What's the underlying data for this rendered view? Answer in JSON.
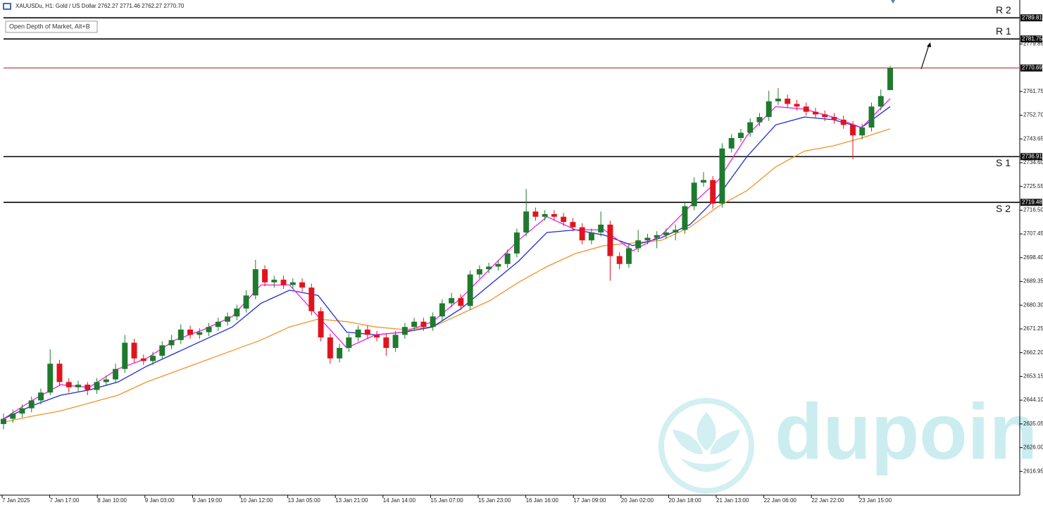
{
  "chart_data": {
    "type": "candlestick",
    "header": "XAUUSDu, H1:  Gold / US Dollar  2762.27 2771.46 2762.27 2770.70",
    "button": "Open Depth of Market, Alt+B",
    "watermark": "dupoin",
    "colors": {
      "up": "#1f7a2e",
      "down": "#e0141e"
    },
    "ylim": [
      2607.9,
      2796.6
    ],
    "yticks": [
      2616.95,
      {
        "value": 2626,
        "label": "2626.00"
      },
      2635.05,
      {
        "value": 2644.1,
        "label": "2644.10"
      },
      2653.15,
      {
        "value": 2662.2,
        "label": "2662.20"
      },
      2671.25,
      {
        "value": 2680.3,
        "label": "2680.30"
      },
      2689.35,
      {
        "value": 2698.4,
        "label": "2698.40"
      },
      2707.45,
      {
        "value": 2716.5,
        "label": "2716.50"
      },
      2725.55,
      {
        "value": 2734.6,
        "label": "2734.60"
      },
      2743.65,
      {
        "value": 2752.7,
        "label": "2752.70"
      },
      2761.75,
      2779.85
    ],
    "x_labels": [
      "7 Jan 2025",
      "7 Jan 17:00",
      "8 Jan 10:00",
      "9 Jan 03:00",
      "9 Jan 19:00",
      "10 Jan 12:00",
      "13 Jan 05:00",
      "13 Jan 21:00",
      "14 Jan 14:00",
      "15 Jan 07:00",
      "15 Jan 23:00",
      "16 Jan 16:00",
      "17 Jan 09:00",
      "20 Jan 02:00",
      "20 Jan 18:00",
      "21 Jan 13:00",
      "22 Jan 06:00",
      "22 Jan 22:00",
      "23 Jan 15:00"
    ],
    "levels": [
      {
        "name": "R 2",
        "value": 2789.81
      },
      {
        "name": "R 1",
        "value": 2781.75
      },
      {
        "name": "S 1",
        "value": 2736.91
      },
      {
        "name": "S 2",
        "value": 2719.48
      }
    ],
    "price_line": {
      "value": 2770.69,
      "color": "#b22222"
    },
    "candles": [
      [
        2635,
        2639,
        2633,
        2637
      ],
      [
        2637,
        2640.5,
        2635.5,
        2639
      ],
      [
        2639,
        2642.5,
        2637.5,
        2641
      ],
      [
        2641,
        2645.5,
        2639.5,
        2644
      ],
      [
        2644,
        2648.5,
        2642.5,
        2647
      ],
      [
        2647,
        2663.5,
        2646,
        2658
      ],
      [
        2658,
        2659.5,
        2649.5,
        2651
      ],
      [
        2651,
        2652.5,
        2647,
        2649
      ],
      [
        2649,
        2651.5,
        2647.5,
        2650
      ],
      [
        2650,
        2651,
        2646,
        2648
      ],
      [
        2648,
        2652.5,
        2646.5,
        2651
      ],
      [
        2651,
        2653.5,
        2649.5,
        2652
      ],
      [
        2652,
        2658,
        2650.5,
        2656
      ],
      [
        2656,
        2669,
        2654.5,
        2666
      ],
      [
        2666,
        2667.5,
        2658.5,
        2660
      ],
      [
        2660,
        2661.5,
        2657.5,
        2659
      ],
      [
        2659,
        2662.5,
        2657.5,
        2661
      ],
      [
        2661,
        2666.5,
        2659.5,
        2665
      ],
      [
        2665,
        2669,
        2663.5,
        2667
      ],
      [
        2667,
        2673,
        2665.5,
        2671
      ],
      [
        2671,
        2672.5,
        2667.5,
        2669
      ],
      [
        2669,
        2671.5,
        2667.5,
        2670
      ],
      [
        2670,
        2673.5,
        2668.5,
        2672
      ],
      [
        2672,
        2675.5,
        2670.5,
        2674
      ],
      [
        2674,
        2677.5,
        2672.5,
        2676
      ],
      [
        2676,
        2680.5,
        2674.5,
        2679
      ],
      [
        2679,
        2686,
        2677.5,
        2684
      ],
      [
        2684,
        2697.6,
        2682.5,
        2694
      ],
      [
        2694,
        2695.5,
        2687.5,
        2689
      ],
      [
        2689,
        2691.5,
        2687,
        2690
      ],
      [
        2690,
        2691.5,
        2686.5,
        2688
      ],
      [
        2688,
        2690.5,
        2686.5,
        2689
      ],
      [
        2689,
        2690.5,
        2685.5,
        2687
      ],
      [
        2687,
        2688.5,
        2676.5,
        2678
      ],
      [
        2678,
        2679.5,
        2666.5,
        2668
      ],
      [
        2668,
        2669.5,
        2658,
        2660
      ],
      [
        2660,
        2665.5,
        2658.5,
        2664
      ],
      [
        2664,
        2669.5,
        2662.5,
        2668
      ],
      [
        2668,
        2672.5,
        2666.5,
        2671
      ],
      [
        2671,
        2672.5,
        2667.5,
        2669
      ],
      [
        2669,
        2670.5,
        2666.5,
        2668
      ],
      [
        2668,
        2669.5,
        2661,
        2664
      ],
      [
        2664,
        2670.5,
        2662.5,
        2669
      ],
      [
        2669,
        2673.5,
        2667.5,
        2672
      ],
      [
        2672,
        2675.5,
        2670.5,
        2674
      ],
      [
        2674,
        2675.5,
        2670.5,
        2672
      ],
      [
        2672,
        2677.5,
        2670.5,
        2676
      ],
      [
        2676,
        2682.5,
        2674.5,
        2681
      ],
      [
        2681,
        2685,
        2679.5,
        2683
      ],
      [
        2683,
        2684.5,
        2678.5,
        2680
      ],
      [
        2680,
        2693.5,
        2678.5,
        2692
      ],
      [
        2692,
        2695.5,
        2690.5,
        2694
      ],
      [
        2694,
        2696.5,
        2692.5,
        2695
      ],
      [
        2695,
        2697.5,
        2693.5,
        2696
      ],
      [
        2696,
        2701.5,
        2694.5,
        2700
      ],
      [
        2700,
        2709.5,
        2698.5,
        2708
      ],
      [
        2708,
        2724.6,
        2706.5,
        2716
      ],
      [
        2716,
        2717.5,
        2712.5,
        2714
      ],
      [
        2714,
        2716.5,
        2712.5,
        2715
      ],
      [
        2715,
        2716.5,
        2712.5,
        2714
      ],
      [
        2714,
        2715.5,
        2710.5,
        2712
      ],
      [
        2712,
        2713.5,
        2708.5,
        2710
      ],
      [
        2710,
        2711.5,
        2703.5,
        2705
      ],
      [
        2705,
        2709.5,
        2703.5,
        2708
      ],
      [
        2708,
        2716,
        2706.5,
        2711
      ],
      [
        2711,
        2712.5,
        2689.6,
        2699
      ],
      [
        2699,
        2700.5,
        2694,
        2696
      ],
      [
        2696,
        2703.5,
        2694.5,
        2702
      ],
      [
        2702,
        2709,
        2700.5,
        2705
      ],
      [
        2705,
        2707.5,
        2703.5,
        2706
      ],
      [
        2706,
        2708.5,
        2702,
        2707
      ],
      [
        2707,
        2709.5,
        2705.5,
        2708
      ],
      [
        2708,
        2711,
        2705,
        2709
      ],
      [
        2709,
        2719.5,
        2707.5,
        2718
      ],
      [
        2718,
        2729,
        2716.5,
        2727
      ],
      [
        2727,
        2731,
        2725.5,
        2728
      ],
      [
        2728,
        2729.5,
        2717,
        2719
      ],
      [
        2719,
        2742,
        2717.5,
        2740
      ],
      [
        2740,
        2745.5,
        2738.5,
        2744
      ],
      [
        2744,
        2747.5,
        2742.5,
        2746
      ],
      [
        2746,
        2751.5,
        2744.5,
        2750
      ],
      [
        2750,
        2753.5,
        2748.5,
        2752
      ],
      [
        2752,
        2762,
        2750.5,
        2758
      ],
      [
        2758,
        2763,
        2756.5,
        2759
      ],
      [
        2759,
        2760.5,
        2755.5,
        2757
      ],
      [
        2757,
        2758.5,
        2754.5,
        2756
      ],
      [
        2756,
        2757.5,
        2752.5,
        2754
      ],
      [
        2754,
        2755.5,
        2751.5,
        2753
      ],
      [
        2753,
        2754.5,
        2750.5,
        2752
      ],
      [
        2752,
        2753.5,
        2749.5,
        2751
      ],
      [
        2751,
        2752.5,
        2747.5,
        2749
      ],
      [
        2749,
        2750.5,
        2735.9,
        2745
      ],
      [
        2745,
        2749.5,
        2743.5,
        2748
      ],
      [
        2748,
        2757.5,
        2746.5,
        2756
      ],
      [
        2756,
        2762.5,
        2754.5,
        2760
      ],
      [
        2762.27,
        2771.46,
        2762.27,
        2770.7
      ]
    ],
    "series": [
      {
        "color": "#f5922a",
        "values": [
          2635.7,
          2638,
          2640,
          2643,
          2646,
          2651,
          2655,
          2659,
          2663,
          2667,
          2672,
          2675,
          2674,
          2672,
          2671,
          2672,
          2677,
          2682,
          2689,
          2695,
          2700,
          2703,
          2704,
          2705,
          2710,
          2718,
          2724,
          2733,
          2739,
          2741,
          2744,
          2747.5
        ]
      },
      {
        "color": "#1f2bd6",
        "values": [
          2637,
          2642,
          2646,
          2648,
          2651,
          2657,
          2662,
          2667,
          2672,
          2681,
          2686,
          2684,
          2670,
          2669,
          2670,
          2672,
          2679,
          2688,
          2697,
          2708,
          2709,
          2707,
          2703,
          2706,
          2711,
          2722,
          2737,
          2749,
          2752,
          2751,
          2748,
          2756
        ]
      },
      {
        "color": "#f21de0",
        "values": [
          2637,
          2644,
          2650,
          2649,
          2656,
          2660,
          2667,
          2671,
          2676,
          2688,
          2688,
          2676,
          2664,
          2669,
          2670,
          2674,
          2683,
          2694,
          2705,
          2714,
          2709,
          2709,
          2701,
          2707,
          2718,
          2728,
          2745,
          2756,
          2755,
          2752,
          2748,
          2759
        ]
      }
    ]
  }
}
